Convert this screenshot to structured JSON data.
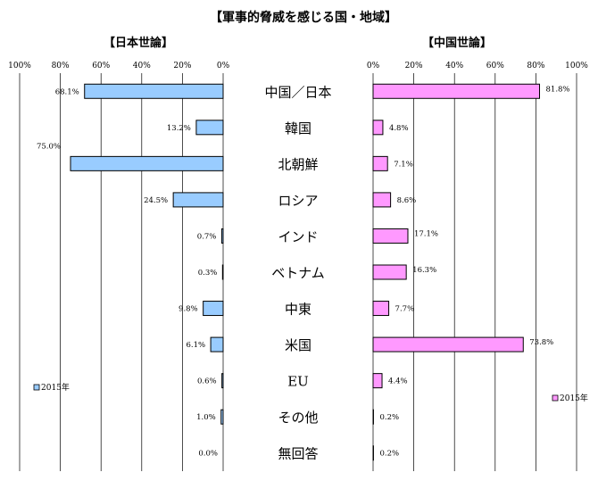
{
  "title": "【軍事的脅威を感じる国・地域】",
  "chart_data": [
    {
      "type": "bar",
      "orientation": "horizontal",
      "direction": "right-to-left",
      "title": "【日本世論】",
      "categories": [
        "中国／日本",
        "韓国",
        "北朝鮮",
        "ロシア",
        "インド",
        "ベトナム",
        "中東",
        "米国",
        "EU",
        "その他",
        "無回答"
      ],
      "series": [
        {
          "name": "2015年",
          "values": [
            68.1,
            13.2,
            75.0,
            24.5,
            0.7,
            0.3,
            9.8,
            6.1,
            0.6,
            1.0,
            0.0
          ],
          "color": "#99CCFF"
        }
      ],
      "value_labels": [
        "68.1%",
        "13.2%",
        "75.0%",
        "24.5%",
        "0.7%",
        "0.3%",
        "9.8%",
        "6.1%",
        "0.6%",
        "1.0%",
        "0.0%"
      ],
      "tick_labels": [
        "100%",
        "80%",
        "60%",
        "40%",
        "20%",
        "0%"
      ],
      "xlim": [
        0,
        100
      ],
      "grid": true,
      "legend_position": "bottom-left"
    },
    {
      "type": "bar",
      "orientation": "horizontal",
      "direction": "left-to-right",
      "title": "【中国世論】",
      "categories": [
        "中国／日本",
        "韓国",
        "北朝鮮",
        "ロシア",
        "インド",
        "ベトナム",
        "中東",
        "米国",
        "EU",
        "その他",
        "無回答"
      ],
      "series": [
        {
          "name": "2015年",
          "values": [
            81.8,
            4.8,
            7.1,
            8.6,
            17.1,
            16.3,
            7.7,
            73.8,
            4.4,
            0.2,
            0.2
          ],
          "color": "#FF99FF"
        }
      ],
      "value_labels": [
        "81.8%",
        "4.8%",
        "7.1%",
        "8.6%",
        "17.1%",
        "16.3%",
        "7.7%",
        "73.8%",
        "4.4%",
        "0.2%",
        "0.2%"
      ],
      "tick_labels": [
        "0%",
        "20%",
        "40%",
        "60%",
        "80%",
        "100%"
      ],
      "xlim": [
        0,
        100
      ],
      "grid": true,
      "legend_position": "bottom-right"
    }
  ]
}
